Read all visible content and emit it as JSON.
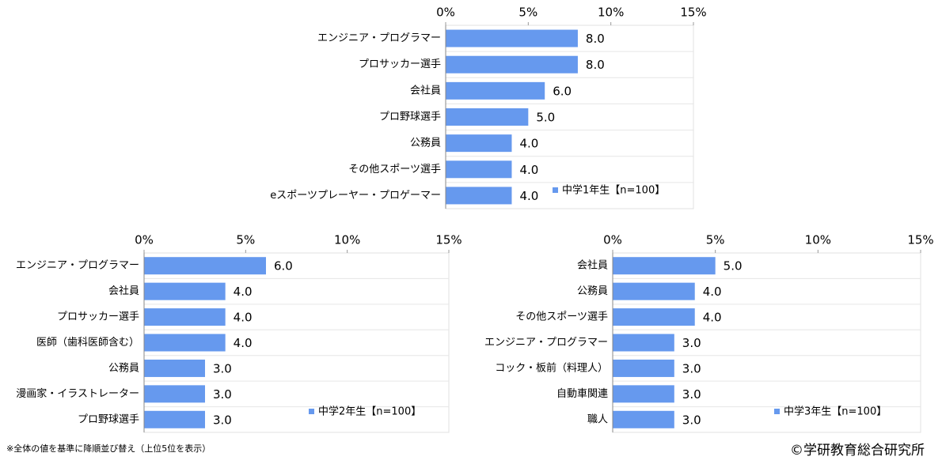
{
  "chart_data": [
    {
      "type": "bar",
      "orientation": "horizontal",
      "categories": [
        "エンジニア・プログラマー",
        "プロサッカー選手",
        "会社員",
        "プロ野球選手",
        "公務員",
        "その他スポーツ選手",
        "eスポーツプレーヤー・プロゲーマー"
      ],
      "series": [
        {
          "name": "中学1年生【n=100】",
          "color": "#6699ee",
          "values": [
            8,
            8,
            6,
            5,
            4,
            4,
            4
          ],
          "value_labels": [
            "8.0",
            "8.0",
            "6.0",
            "5.0",
            "4.0",
            "4.0",
            "4.0"
          ]
        }
      ],
      "xlim": [
        0,
        15
      ],
      "xticks": [
        {
          "value": 0,
          "label": "0%"
        },
        {
          "value": 5,
          "label": "5%"
        },
        {
          "value": 10,
          "label": "10%"
        },
        {
          "value": 15,
          "label": "15%"
        }
      ],
      "grid": false,
      "legend": "bottom-right"
    },
    {
      "type": "bar",
      "orientation": "horizontal",
      "categories": [
        "エンジニア・プログラマー",
        "会社員",
        "プロサッカー選手",
        "医師（歯科医師含む）",
        "公務員",
        "漫画家・イラストレーター",
        "プロ野球選手"
      ],
      "series": [
        {
          "name": "中学2年生【n=100】",
          "color": "#6699ee",
          "values": [
            6,
            4,
            4,
            4,
            3,
            3,
            3
          ],
          "value_labels": [
            "6.0",
            "4.0",
            "4.0",
            "4.0",
            "3.0",
            "3.0",
            "3.0"
          ]
        }
      ],
      "xlim": [
        0,
        15
      ],
      "xticks": [
        {
          "value": 0,
          "label": "0%"
        },
        {
          "value": 5,
          "label": "5%"
        },
        {
          "value": 10,
          "label": "10%"
        },
        {
          "value": 15,
          "label": "15%"
        }
      ],
      "grid": false,
      "legend": "bottom-right"
    },
    {
      "type": "bar",
      "orientation": "horizontal",
      "categories": [
        "会社員",
        "公務員",
        "その他スポーツ選手",
        "エンジニア・プログラマー",
        "コック・板前（料理人）",
        "自動車関連",
        "職人"
      ],
      "series": [
        {
          "name": "中学3年生【n=100】",
          "color": "#6699ee",
          "values": [
            5,
            4,
            4,
            3,
            3,
            3,
            3
          ],
          "value_labels": [
            "5.0",
            "4.0",
            "4.0",
            "3.0",
            "3.0",
            "3.0",
            "3.0"
          ]
        }
      ],
      "xlim": [
        0,
        15
      ],
      "xticks": [
        {
          "value": 0,
          "label": "0%"
        },
        {
          "value": 5,
          "label": "5%"
        },
        {
          "value": 10,
          "label": "10%"
        },
        {
          "value": 15,
          "label": "15%"
        }
      ],
      "grid": false,
      "legend": "bottom-right"
    }
  ],
  "footnote": "※全体の値を基準に降順並び替え（上位5位を表示）",
  "credit": "©学研教育総合研究所"
}
